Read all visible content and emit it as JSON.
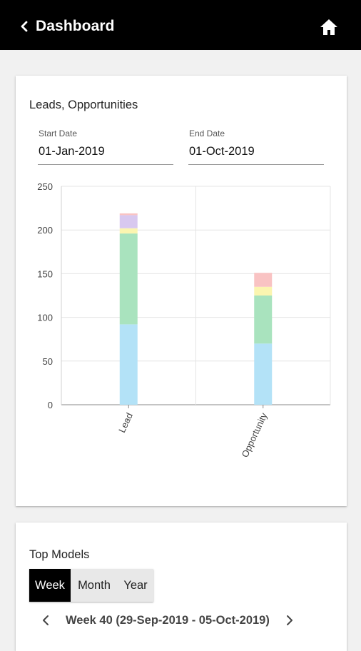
{
  "appbar": {
    "title": "Dashboard",
    "back_icon": "chevron-left-icon",
    "home_icon": "home-icon",
    "background": "#000000"
  },
  "leads_card": {
    "title": "Leads, Opportunities",
    "start_date": {
      "label": "Start Date",
      "value": "01-Jan-2019"
    },
    "end_date": {
      "label": "End Date",
      "value": "01-Oct-2019"
    }
  },
  "chart_data": {
    "type": "bar",
    "stacked": true,
    "categories": [
      "Lead",
      "Opportunity"
    ],
    "series": [
      {
        "values": [
          92,
          70
        ],
        "color": "#b3e2f7"
      },
      {
        "values": [
          104,
          55
        ],
        "color": "#a9e3be"
      },
      {
        "values": [
          6,
          10
        ],
        "color": "#fbf5b0"
      },
      {
        "values": [
          15,
          0
        ],
        "color": "#d8c8ef"
      },
      {
        "values": [
          2,
          16
        ],
        "color": "#f9c3c3"
      }
    ],
    "ylim": [
      0,
      250
    ],
    "yticks": [
      0,
      50,
      100,
      150,
      200,
      250
    ],
    "xlabel": "",
    "ylabel": "",
    "grid": true,
    "legend": "none"
  },
  "top_models": {
    "title": "Top Models",
    "period_options": [
      "Week",
      "Month",
      "Year"
    ],
    "selected_period": "Week",
    "week_label": "Week 40 (29-Sep-2019 - 05-Oct-2019)",
    "prev_icon": "chevron-left-icon",
    "next_icon": "chevron-right-icon"
  }
}
